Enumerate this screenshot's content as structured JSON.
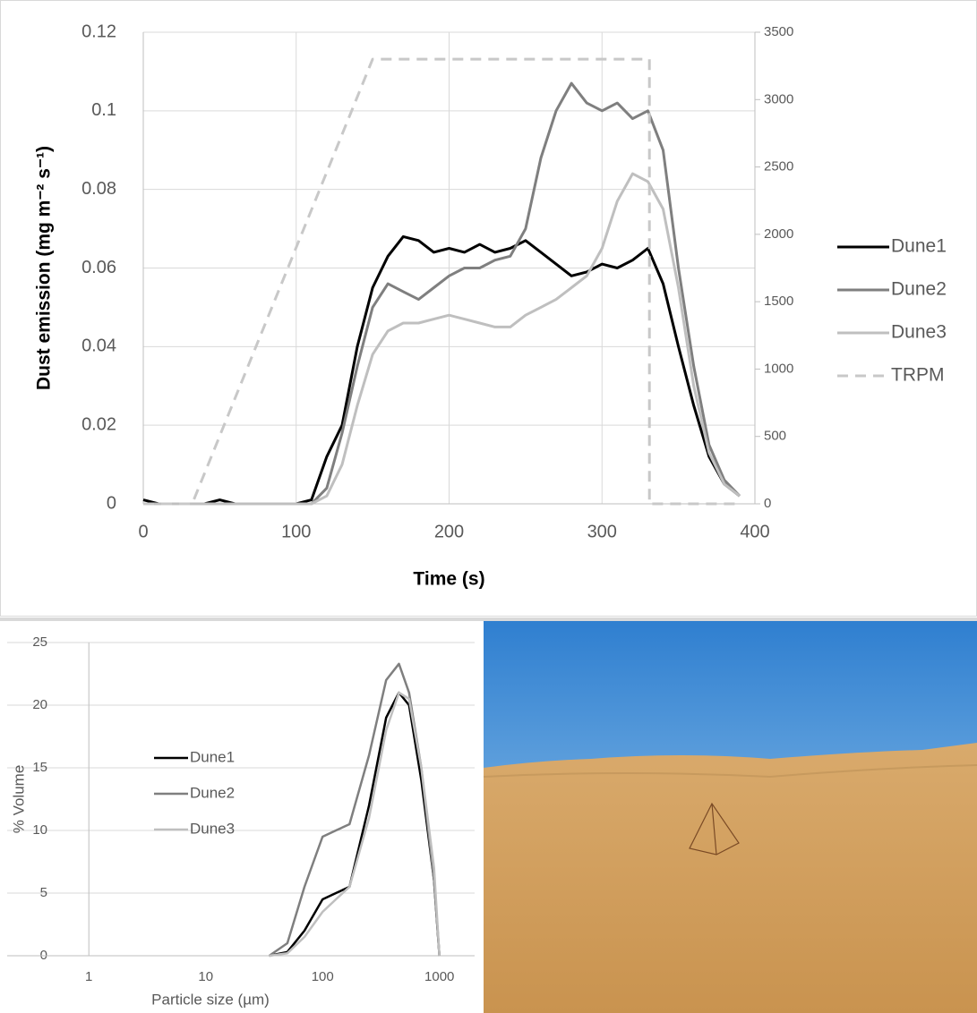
{
  "chart_data": [
    {
      "type": "line",
      "xlabel": "Time (s)",
      "ylabel": "Dust emission (mg m⁻² s⁻¹)",
      "x": [
        0,
        10,
        20,
        30,
        40,
        50,
        60,
        70,
        80,
        90,
        100,
        110,
        120,
        130,
        140,
        150,
        160,
        170,
        180,
        190,
        200,
        210,
        220,
        230,
        240,
        250,
        260,
        270,
        280,
        290,
        300,
        310,
        320,
        330,
        340,
        350,
        360,
        370,
        380,
        390
      ],
      "series": [
        {
          "name": "Dune1",
          "color": "#000000",
          "dash": false,
          "values": [
            0.001,
            0,
            0,
            0,
            0,
            0.001,
            0,
            0,
            0,
            0,
            0,
            0.001,
            0.012,
            0.02,
            0.04,
            0.055,
            0.063,
            0.068,
            0.067,
            0.064,
            0.065,
            0.064,
            0.066,
            0.064,
            0.065,
            0.067,
            0.064,
            0.061,
            0.058,
            0.059,
            0.061,
            0.06,
            0.062,
            0.065,
            0.056,
            0.04,
            0.025,
            0.012,
            0.005,
            0.002
          ]
        },
        {
          "name": "Dune2",
          "color": "#7f7f7f",
          "dash": false,
          "values": [
            0,
            0,
            0,
            0,
            0,
            0,
            0,
            0,
            0,
            0,
            0,
            0,
            0.004,
            0.018,
            0.035,
            0.05,
            0.056,
            0.054,
            0.052,
            0.055,
            0.058,
            0.06,
            0.06,
            0.062,
            0.063,
            0.07,
            0.088,
            0.1,
            0.107,
            0.102,
            0.1,
            0.102,
            0.098,
            0.1,
            0.09,
            0.06,
            0.035,
            0.015,
            0.006,
            0.002
          ]
        },
        {
          "name": "Dune3",
          "color": "#bfbfbf",
          "dash": false,
          "values": [
            0,
            0,
            0,
            0,
            0,
            0,
            0,
            0,
            0,
            0,
            0,
            0,
            0.002,
            0.01,
            0.025,
            0.038,
            0.044,
            0.046,
            0.046,
            0.047,
            0.048,
            0.047,
            0.046,
            0.045,
            0.045,
            0.048,
            0.05,
            0.052,
            0.055,
            0.058,
            0.065,
            0.077,
            0.084,
            0.082,
            0.075,
            0.055,
            0.03,
            0.013,
            0.005,
            0.002
          ]
        },
        {
          "name": "TRPM",
          "color": "#c8c8c8",
          "dash": true,
          "axis": "y2",
          "x": [
            0,
            32,
            150,
            331,
            331,
            390
          ],
          "values": [
            0,
            0,
            3300,
            3300,
            0,
            0
          ]
        }
      ],
      "xlim": [
        0,
        400
      ],
      "xticks": [
        0,
        100,
        200,
        300,
        400
      ],
      "ylim": [
        0,
        0.12
      ],
      "yticks": [
        0,
        0.02,
        0.04,
        0.06,
        0.08,
        0.1,
        0.12
      ],
      "y2lim": [
        0,
        3500
      ],
      "y2ticks": [
        0,
        500,
        1000,
        1500,
        2000,
        2500,
        3000,
        3500
      ],
      "grid": true,
      "legend": "right"
    },
    {
      "type": "line",
      "log_x": true,
      "xlabel": "Particle size (µm)",
      "ylabel": "% Volume",
      "x": [
        35,
        50,
        70,
        100,
        130,
        170,
        250,
        350,
        450,
        550,
        700,
        900,
        1000
      ],
      "series": [
        {
          "name": "Dune1",
          "color": "#000000",
          "values": [
            0,
            0.3,
            2,
            4.5,
            5,
            5.5,
            12,
            19,
            21,
            20,
            14,
            6,
            0
          ]
        },
        {
          "name": "Dune2",
          "color": "#7f7f7f",
          "values": [
            0,
            1,
            5.5,
            9.5,
            10,
            10.5,
            16,
            22,
            23.3,
            21,
            15,
            6,
            0
          ]
        },
        {
          "name": "Dune3",
          "color": "#bfbfbf",
          "values": [
            0,
            0.2,
            1.5,
            3.5,
            4.5,
            5.5,
            11,
            18,
            21,
            20.5,
            15,
            7,
            0
          ]
        }
      ],
      "xlim": [
        0.2,
        2000
      ],
      "xticks": [
        1,
        10,
        100,
        1000
      ],
      "ylim": [
        0,
        25
      ],
      "yticks": [
        0,
        5,
        10,
        15,
        20,
        25
      ],
      "grid": true,
      "legend": "left"
    }
  ]
}
